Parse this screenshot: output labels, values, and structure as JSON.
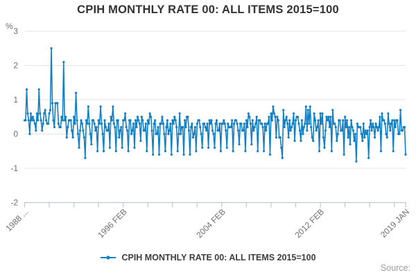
{
  "title": "CPIH MONTHLY RATE 00: ALL ITEMS 2015=100",
  "legend": {
    "label": "CPIH MONTHLY RATE 00: ALL ITEMS 2015=100"
  },
  "source_label": "Source:",
  "colors": {
    "line": "#1180c5",
    "grid": "#e3e3e3",
    "axis": "#bcc9d4",
    "tick_text": "#6f6f6f",
    "title_text": "#333333",
    "legend_text": "#3d3d3d",
    "source_text": "#9c9c9c"
  },
  "chart_data": {
    "type": "line",
    "title": "CPIH MONTHLY RATE 00: ALL ITEMS 2015=100",
    "ylabel": "%",
    "xlabel": "",
    "ylim": [
      -2,
      3
    ],
    "yticks": [
      3,
      2,
      1,
      0,
      -1,
      -2
    ],
    "grid": "horizontal",
    "legend_position": "bottom",
    "frequency": "monthly",
    "x_start": "1988 FEB",
    "x_end": "2019 JAN",
    "x_minor_tick_every": 24,
    "x_tick_labels": [
      {
        "month_index": 0,
        "label": "1988 ..."
      },
      {
        "month_index": 96,
        "label": "1996 FEB"
      },
      {
        "month_index": 192,
        "label": "2004 FEB"
      },
      {
        "month_index": 288,
        "label": "2012 FEB"
      },
      {
        "month_index": 371,
        "label": "2019 JAN"
      }
    ],
    "series": [
      {
        "name": "CPIH MONTHLY RATE 00: ALL ITEMS 2015=100",
        "values": [
          0.4,
          0.4,
          1.3,
          0.6,
          0.4,
          0.0,
          0.6,
          0.4,
          0.5,
          0.4,
          0.3,
          0.1,
          0.6,
          0.4,
          1.3,
          0.6,
          0.4,
          0.1,
          0.3,
          0.6,
          0.7,
          0.4,
          0.3,
          0.3,
          0.6,
          0.7,
          2.5,
          0.9,
          0.4,
          0.2,
          0.9,
          0.9,
          0.9,
          0.3,
          0.2,
          0.2,
          0.5,
          0.4,
          2.1,
          0.4,
          0.5,
          -0.1,
          0.2,
          0.4,
          0.4,
          0.4,
          0.1,
          -0.1,
          0.5,
          0.3,
          1.2,
          0.4,
          0.0,
          -0.4,
          0.1,
          0.4,
          0.3,
          0.1,
          -0.1,
          -0.7,
          0.4,
          0.3,
          0.8,
          0.3,
          0.0,
          -0.3,
          0.4,
          0.4,
          0.3,
          0.1,
          0.2,
          -0.5,
          0.4,
          0.3,
          0.8,
          0.3,
          0.0,
          -0.5,
          0.4,
          0.2,
          0.1,
          0.1,
          0.3,
          -0.4,
          0.5,
          0.4,
          0.8,
          0.3,
          0.2,
          -0.5,
          0.4,
          0.4,
          -0.1,
          0.1,
          0.2,
          -0.4,
          0.4,
          0.4,
          0.6,
          0.2,
          0.1,
          -0.5,
          0.4,
          0.4,
          0.0,
          0.1,
          0.3,
          -0.4,
          0.4,
          0.2,
          0.5,
          0.4,
          0.3,
          -0.2,
          0.5,
          0.4,
          0.1,
          0.1,
          0.3,
          -0.5,
          0.4,
          0.3,
          0.6,
          0.5,
          0.1,
          -0.6,
          0.3,
          0.4,
          0.0,
          0.0,
          0.2,
          -0.6,
          0.3,
          0.3,
          0.5,
          0.3,
          0.0,
          -0.5,
          0.2,
          0.4,
          0.0,
          0.1,
          0.3,
          -0.6,
          0.4,
          0.3,
          0.5,
          0.4,
          0.2,
          -0.5,
          0.0,
          0.6,
          0.0,
          0.2,
          0.2,
          -0.6,
          0.4,
          0.2,
          0.5,
          0.5,
          0.1,
          -0.6,
          0.2,
          0.3,
          -0.1,
          0.0,
          0.2,
          -0.5,
          0.3,
          0.4,
          0.4,
          0.2,
          0.0,
          -0.4,
          0.3,
          0.3,
          0.2,
          0.1,
          0.3,
          -0.4,
          0.4,
          0.3,
          0.4,
          0.1,
          0.0,
          -0.4,
          0.3,
          0.4,
          0.1,
          0.1,
          0.3,
          -0.5,
          0.3,
          0.3,
          0.4,
          0.3,
          0.1,
          -0.4,
          0.3,
          0.2,
          0.2,
          0.2,
          0.4,
          -0.5,
          0.3,
          0.4,
          0.4,
          0.3,
          0.1,
          -0.3,
          0.3,
          0.3,
          0.1,
          0.1,
          0.3,
          -0.5,
          0.4,
          0.2,
          0.6,
          0.5,
          0.3,
          -0.3,
          0.4,
          0.1,
          0.2,
          0.3,
          0.5,
          -0.5,
          0.4,
          0.4,
          0.3,
          0.3,
          0.2,
          -0.5,
          0.3,
          0.1,
          0.3,
          0.3,
          0.5,
          -0.6,
          0.6,
          0.4,
          0.8,
          0.6,
          0.5,
          -0.1,
          0.5,
          0.4,
          -0.1,
          -0.1,
          -0.4,
          -0.7,
          0.7,
          0.2,
          0.4,
          0.5,
          0.3,
          -0.1,
          0.4,
          0.1,
          0.2,
          0.3,
          0.6,
          -0.2,
          0.4,
          0.5,
          0.5,
          0.3,
          0.1,
          -0.2,
          0.4,
          0.0,
          0.2,
          0.3,
          0.8,
          0.1,
          0.7,
          0.3,
          0.8,
          0.2,
          -0.1,
          -0.2,
          0.6,
          0.4,
          0.1,
          0.2,
          0.4,
          -0.5,
          0.6,
          0.3,
          0.6,
          -0.1,
          -0.4,
          0.1,
          0.5,
          0.4,
          0.5,
          0.2,
          0.5,
          -0.5,
          0.7,
          0.3,
          0.3,
          0.2,
          -0.2,
          0.0,
          0.4,
          0.4,
          0.1,
          0.1,
          0.4,
          -0.6,
          0.5,
          0.2,
          0.4,
          -0.1,
          0.2,
          -0.3,
          0.4,
          0.2,
          0.1,
          -0.2,
          0.0,
          -0.8,
          0.3,
          0.2,
          0.2,
          0.2,
          0.0,
          -0.2,
          0.3,
          -0.1,
          0.1,
          0.0,
          0.1,
          -0.7,
          0.2,
          0.4,
          0.1,
          0.3,
          0.2,
          -0.1,
          0.3,
          0.2,
          0.1,
          0.2,
          0.5,
          -0.5,
          0.6,
          0.4,
          0.4,
          0.3,
          0.0,
          -0.1,
          0.6,
          0.3,
          0.1,
          0.3,
          0.4,
          -0.5,
          0.4,
          0.2,
          0.4,
          0.4,
          0.0,
          0.0,
          0.7,
          0.1,
          0.1,
          0.2,
          0.2,
          -0.6
        ]
      }
    ]
  }
}
